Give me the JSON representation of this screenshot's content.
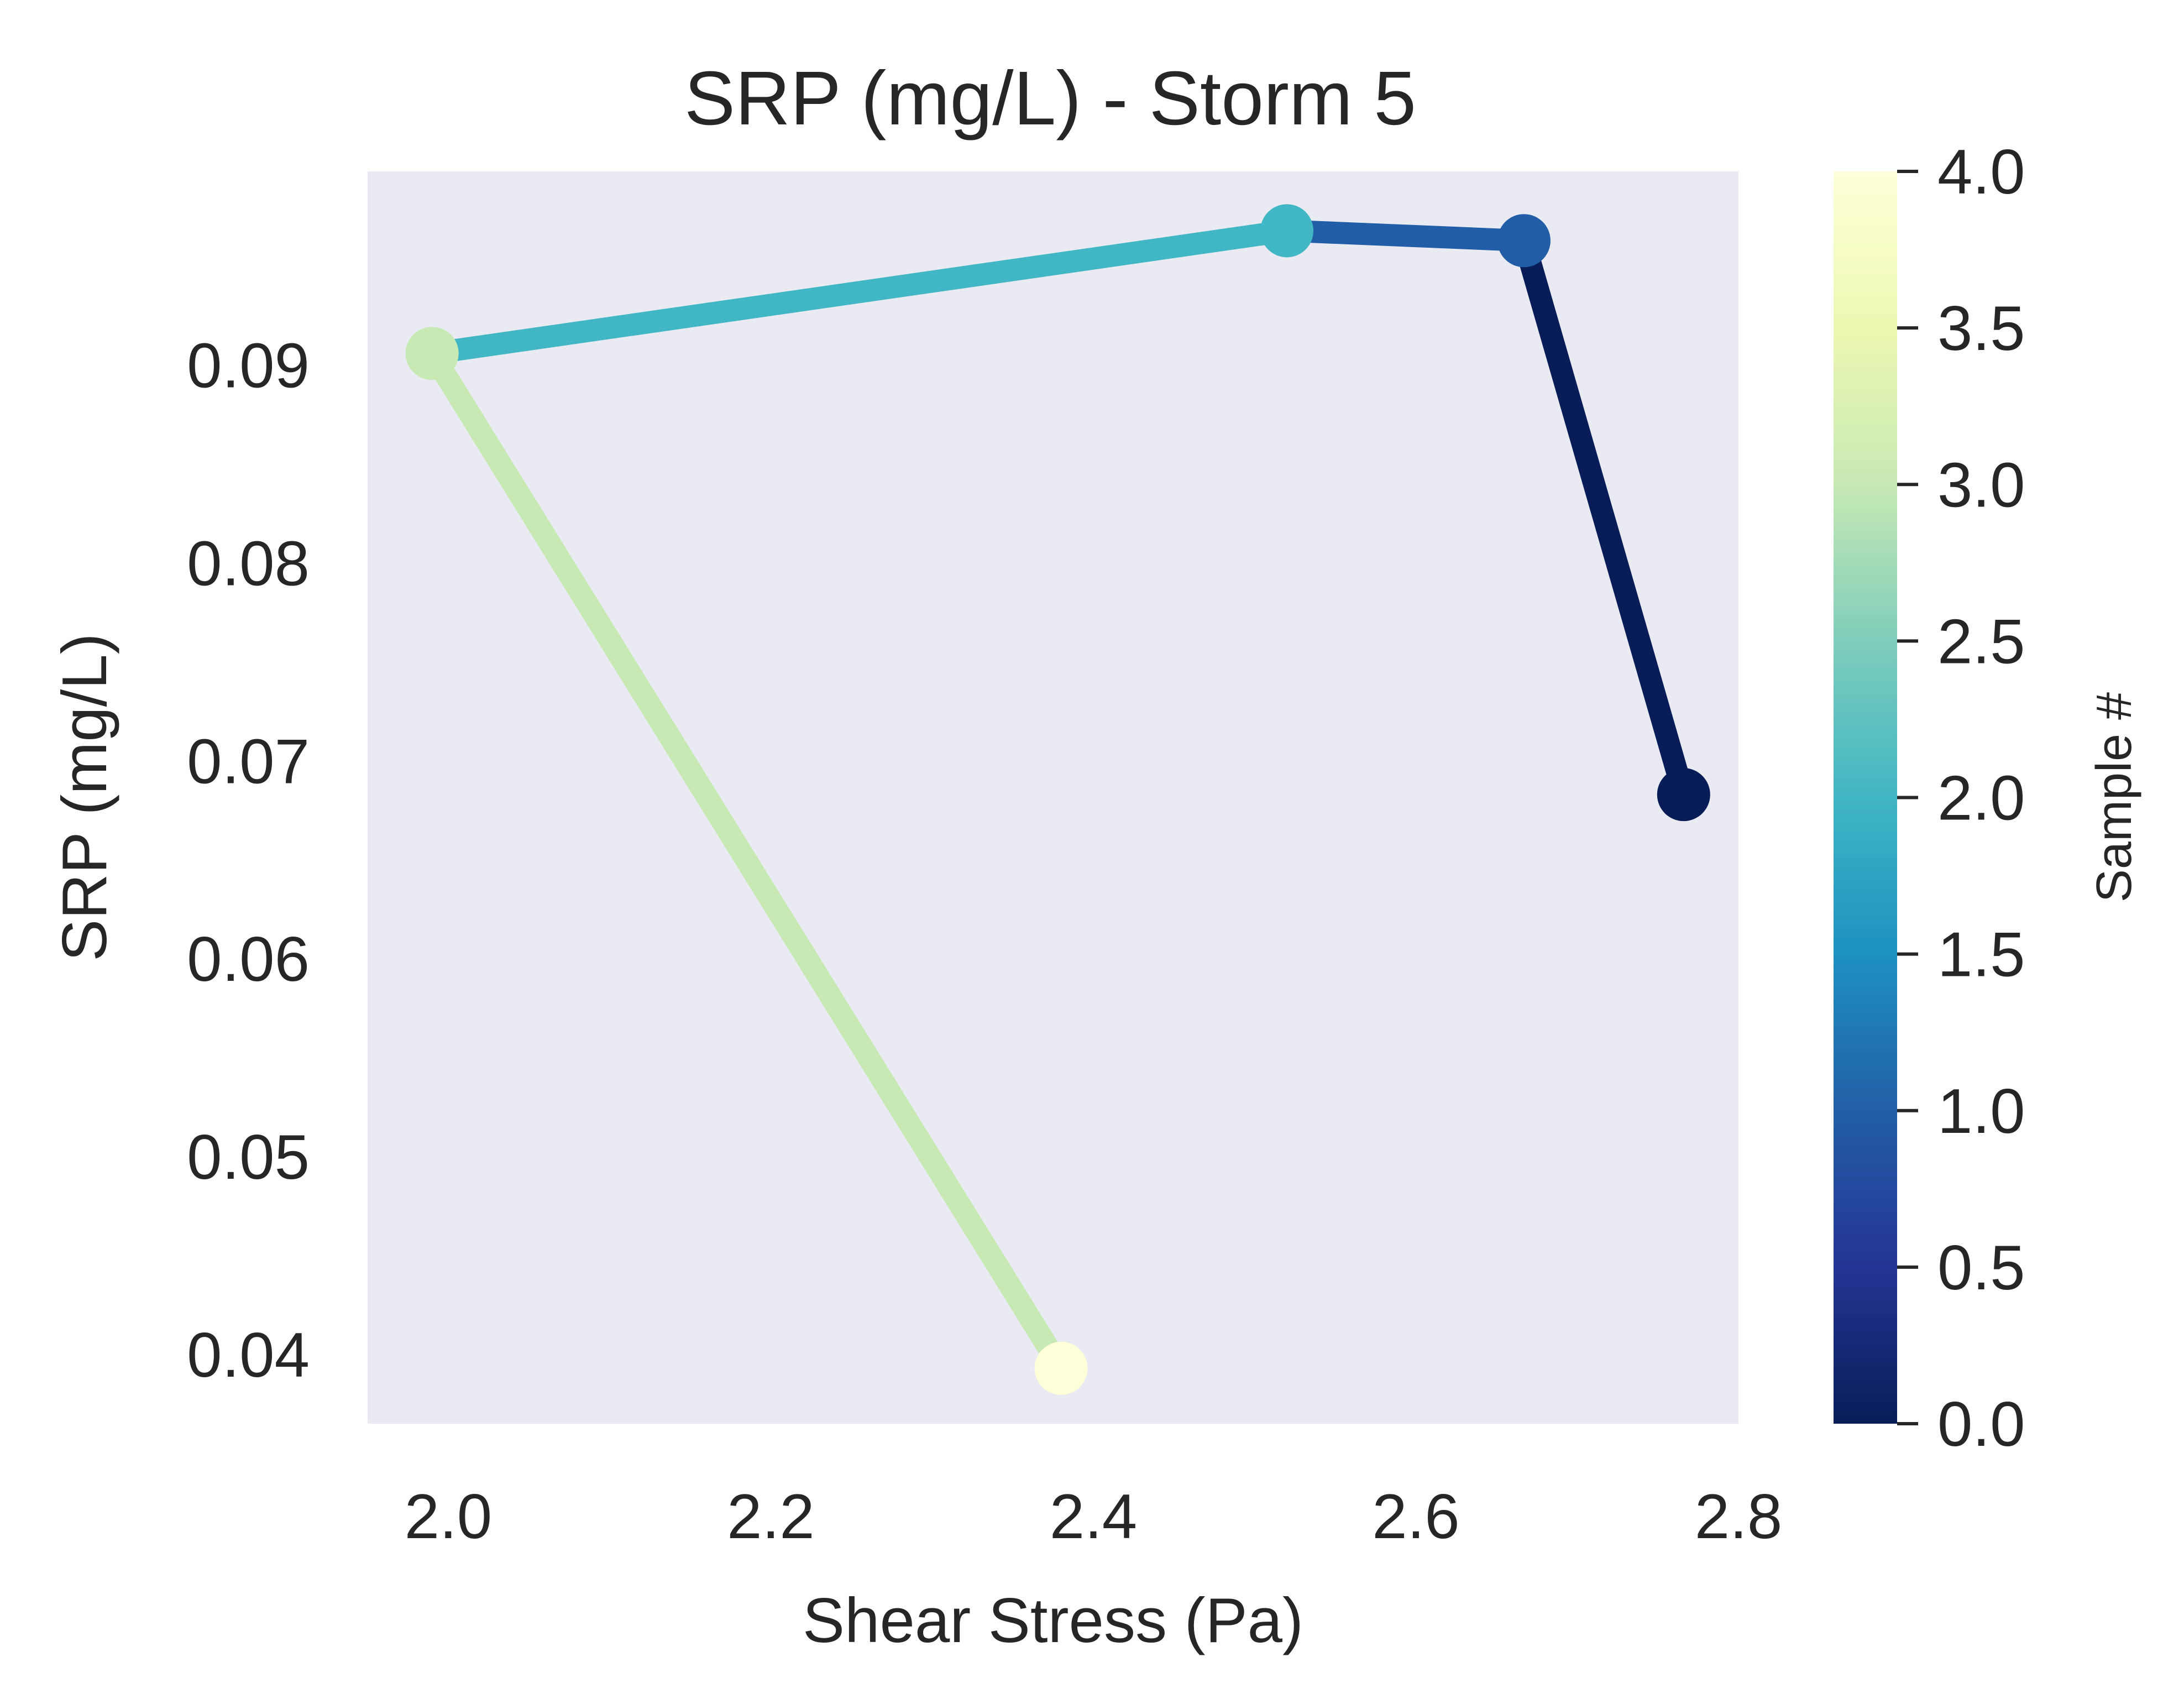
{
  "chart_data": {
    "type": "line",
    "title": "SRP (mg/L) - Storm 5",
    "xlabel": "Shear Stress (Pa)",
    "ylabel": "SRP (mg/L)",
    "xlim": [
      1.95,
      2.8
    ],
    "ylim": [
      0.0365,
      0.0998
    ],
    "xticks": [
      "2.0",
      "2.2",
      "2.4",
      "2.6",
      "2.8"
    ],
    "yticks": [
      "0.04",
      "0.05",
      "0.06",
      "0.07",
      "0.08",
      "0.09"
    ],
    "grid": false,
    "background": "#eaeaf2",
    "x": [
      2.766,
      2.667,
      2.52,
      1.99,
      2.38
    ],
    "y": [
      0.0683,
      0.0963,
      0.0968,
      0.0906,
      0.0393
    ],
    "sample": [
      0,
      1,
      2,
      3,
      4
    ],
    "colorbar": {
      "label": "Sample #",
      "colormap": "YlGnBu_r",
      "range": [
        0.0,
        4.0
      ],
      "ticks": [
        "0.0",
        "0.5",
        "1.0",
        "1.5",
        "2.0",
        "2.5",
        "3.0",
        "3.5",
        "4.0"
      ],
      "colors": [
        "#081d58",
        "#253494",
        "#225ea8",
        "#1d91c0",
        "#41b6c4",
        "#7fcdbb",
        "#c7e9b4",
        "#edf8b1",
        "#ffffd9"
      ]
    }
  }
}
